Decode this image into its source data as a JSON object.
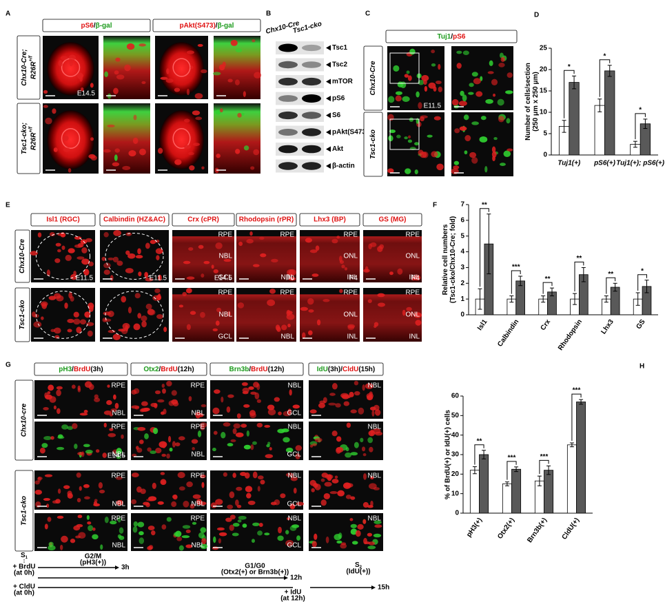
{
  "panels": {
    "A": {
      "label": "A",
      "headers": [
        [
          {
            "text": "pS6",
            "color": "#e01010"
          },
          {
            "text": "/",
            "color": "#000000"
          },
          {
            "text": "β-gal",
            "color": "#1a9a1a"
          }
        ],
        [
          {
            "text": "pAkt(S473)",
            "color": "#e01010"
          },
          {
            "text": "/",
            "color": "#000000"
          },
          {
            "text": "β-gal",
            "color": "#1a9a1a"
          }
        ]
      ],
      "rows": [
        {
          "line1": "Chx10-Cre;",
          "line2": "R26R",
          "sup": "+/f"
        },
        {
          "line1": "Tsc1-cko;",
          "line2": "R26R",
          "sup": "+/f"
        }
      ],
      "stage": "E14.5"
    },
    "B": {
      "label": "B",
      "columns": [
        "Chx10-Cre",
        "Tsc1-cko"
      ],
      "bands": [
        "Tsc1",
        "Tsc2",
        "mTOR",
        "pS6",
        "S6",
        "pAkt(S473)",
        "Akt",
        "β-actin"
      ]
    },
    "C": {
      "label": "C",
      "header": [
        {
          "text": "Tuj1",
          "color": "#1a9a1a"
        },
        {
          "text": "/",
          "color": "#000000"
        },
        {
          "text": "pS6",
          "color": "#e01010"
        }
      ],
      "rows": [
        "Chx10-Cre",
        "Tsc1-cko"
      ],
      "stage": "E11.5"
    },
    "D": {
      "label": "D"
    },
    "E": {
      "label": "E",
      "headers": [
        "Isl1 (RGC)",
        "Calbindin (HZ&AC)",
        "Crx (cPR)",
        "Rhodopsin (rPR)",
        "Lhx3 (BP)",
        "GS (MG)"
      ],
      "rows": [
        "Chx10-Cre",
        "Tsc1-cko"
      ],
      "stages": [
        "E11.5",
        "E11.5",
        "E14.5",
        "P0",
        "P4",
        "P4"
      ],
      "layers": [
        [],
        [],
        [
          "RPE",
          "NBL",
          "GCL"
        ],
        [
          "RPE",
          "NBL"
        ],
        [
          "RPE",
          "ONL",
          "INL"
        ],
        [
          "RPE",
          "ONL",
          "INL"
        ]
      ]
    },
    "F": {
      "label": "F"
    },
    "G": {
      "label": "G",
      "headers": [
        [
          {
            "text": "pH3",
            "color": "#1a9a1a"
          },
          {
            "text": "/",
            "color": "#000000"
          },
          {
            "text": "BrdU",
            "color": "#e01010"
          },
          {
            "text": "(3h)",
            "color": "#000000"
          }
        ],
        [
          {
            "text": "Otx2",
            "color": "#1a9a1a"
          },
          {
            "text": "/",
            "color": "#000000"
          },
          {
            "text": "BrdU",
            "color": "#e01010"
          },
          {
            "text": "(12h)",
            "color": "#000000"
          }
        ],
        [
          {
            "text": "Brn3b",
            "color": "#1a9a1a"
          },
          {
            "text": "/",
            "color": "#000000"
          },
          {
            "text": "BrdU",
            "color": "#e01010"
          },
          {
            "text": "(12h)",
            "color": "#000000"
          }
        ],
        [
          {
            "text": "IdU",
            "color": "#1a9a1a"
          },
          {
            "text": "(3h)/",
            "color": "#000000"
          },
          {
            "text": "CldU",
            "color": "#e01010"
          },
          {
            "text": "(15h)",
            "color": "#000000"
          }
        ]
      ],
      "rows": [
        "Chx10-cre",
        "Tsc1-cko"
      ],
      "stage": "E14.5",
      "layers": [
        [
          "RPE",
          "NBL"
        ],
        [
          "RPE",
          "NBL"
        ],
        [
          "NBL",
          "GCL"
        ],
        [
          "NBL"
        ]
      ]
    },
    "H": {
      "label": "H"
    }
  },
  "timeline": {
    "s1": {
      "main": "S",
      "sub": "1"
    },
    "brdu": [
      "+ BrdU",
      "(at 0h)"
    ],
    "cldu": [
      "+ CldU",
      "(at 0h)"
    ],
    "g2m": [
      "G2/M",
      "(pH3(+))"
    ],
    "t3": "3h",
    "g1": [
      "G1/G0",
      "(Otx2(+) or Brn3b(+))"
    ],
    "t12": "12h",
    "idu": [
      "+ IdU",
      "(at 12h)"
    ],
    "s2": {
      "main": "S",
      "sub": "2",
      "note": "(IdU(+))"
    },
    "t15": "15h"
  },
  "chart_data": [
    {
      "type": "bar",
      "ylabel": [
        "Number of cells/section",
        "(250 μm x 250 μm)"
      ],
      "categories": [
        "Tuj1(+)",
        "pS6(+)",
        "Tuj1(+); pS6(+)"
      ],
      "series": [
        {
          "color": "#ffffff",
          "values": [
            6.7,
            11.6,
            2.5
          ],
          "errors": [
            1.4,
            1.5,
            0.7
          ]
        },
        {
          "color": "#595959",
          "values": [
            17,
            19.7,
            7.3
          ],
          "errors": [
            1.5,
            1.3,
            1.1
          ]
        }
      ],
      "annotations": [
        "*",
        "*",
        "*"
      ],
      "ylim": [
        0,
        25
      ],
      "yticks": [
        0,
        5,
        10,
        15,
        20,
        25
      ]
    },
    {
      "type": "bar",
      "ylabel": [
        "Relative cell numbers",
        "(Tsc1-cko/Chx10-Cre; fold)"
      ],
      "categories": [
        "Isl1",
        "Calbindin",
        "Crx",
        "Rhodopsin",
        "Lhx3",
        "GS"
      ],
      "series": [
        {
          "color": "#ffffff",
          "values": [
            1,
            1,
            1,
            1,
            1,
            1
          ],
          "errors": [
            0.65,
            0.2,
            0.2,
            0.35,
            0.2,
            0.4
          ]
        },
        {
          "color": "#595959",
          "values": [
            4.5,
            2.15,
            1.45,
            2.55,
            1.75,
            1.8
          ],
          "errors": [
            1.9,
            0.3,
            0.25,
            0.45,
            0.25,
            0.4
          ]
        }
      ],
      "annotations": [
        "**",
        "***",
        "**",
        "**",
        "**",
        "*"
      ],
      "ylim": [
        0,
        7
      ],
      "yticks": [
        0,
        1,
        2,
        3,
        4,
        5,
        6,
        7
      ]
    },
    {
      "type": "bar",
      "ylabel": [
        "% of BrdU(+) or IdU(+) cells"
      ],
      "categories": [
        "pH3(+)",
        "Otx2(+)",
        "Brn3b(+)",
        "CldU(+)"
      ],
      "series": [
        {
          "color": "#ffffff",
          "values": [
            22,
            15,
            16.5,
            35
          ],
          "errors": [
            1.8,
            1,
            2.5,
            1
          ]
        },
        {
          "color": "#595959",
          "values": [
            30,
            22.5,
            22,
            57
          ],
          "errors": [
            2.2,
            1.2,
            2.2,
            1.2
          ]
        }
      ],
      "annotations": [
        "**",
        "***",
        "***",
        "***"
      ],
      "ylim": [
        0,
        60
      ],
      "yticks": [
        0,
        10,
        20,
        30,
        40,
        50,
        60
      ]
    }
  ]
}
